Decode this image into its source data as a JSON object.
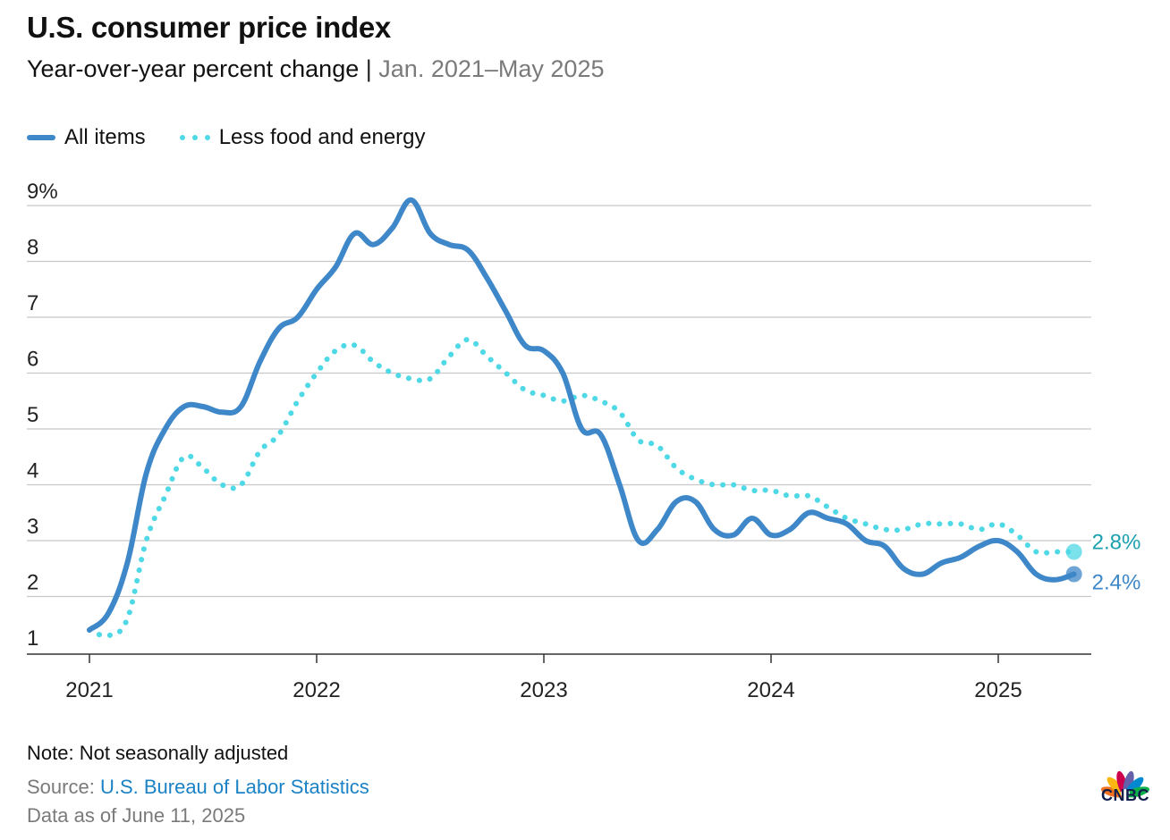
{
  "header": {
    "title": "U.S. consumer price index",
    "subtitle_main": "Year-over-year percent change",
    "subtitle_sep": "|",
    "subtitle_range": "Jan. 2021–May 2025"
  },
  "legend": {
    "all_items": "All items",
    "core": "Less food and energy"
  },
  "footer": {
    "note": "Note: Not seasonally adjusted",
    "source_prefix": "Source:",
    "source_name": "U.S. Bureau of Labor Statistics",
    "as_of": "Data as of June 11, 2025"
  },
  "brand": {
    "logo_text": "CNBC"
  },
  "colors": {
    "all_items": "#3e87c8",
    "core": "#4fd8e6",
    "all_items_label": "#3e87c8",
    "core_label": "#1aa0ae",
    "grid": "#c8c8c8",
    "axis": "#333333"
  },
  "chart_data": {
    "type": "line",
    "title": "U.S. consumer price index",
    "subtitle": "Year-over-year percent change",
    "x_start": "2021-01",
    "x_end": "2025-05",
    "x_ticks": [
      "2021",
      "2022",
      "2023",
      "2024",
      "2025"
    ],
    "ylim": [
      1,
      9
    ],
    "y_ticks": [
      "9%",
      "8",
      "7",
      "6",
      "5",
      "4",
      "3",
      "2",
      "1"
    ],
    "grid": "horizontal",
    "legend_position": "top-left",
    "x": [
      "2021-01",
      "2021-02",
      "2021-03",
      "2021-04",
      "2021-05",
      "2021-06",
      "2021-07",
      "2021-08",
      "2021-09",
      "2021-10",
      "2021-11",
      "2021-12",
      "2022-01",
      "2022-02",
      "2022-03",
      "2022-04",
      "2022-05",
      "2022-06",
      "2022-07",
      "2022-08",
      "2022-09",
      "2022-10",
      "2022-11",
      "2022-12",
      "2023-01",
      "2023-02",
      "2023-03",
      "2023-04",
      "2023-05",
      "2023-06",
      "2023-07",
      "2023-08",
      "2023-09",
      "2023-10",
      "2023-11",
      "2023-12",
      "2024-01",
      "2024-02",
      "2024-03",
      "2024-04",
      "2024-05",
      "2024-06",
      "2024-07",
      "2024-08",
      "2024-09",
      "2024-10",
      "2024-11",
      "2024-12",
      "2025-01",
      "2025-02",
      "2025-03",
      "2025-04",
      "2025-05"
    ],
    "series": [
      {
        "name": "All items",
        "style": "solid",
        "end_label": "2.4%",
        "values": [
          1.4,
          1.7,
          2.6,
          4.2,
          5.0,
          5.4,
          5.4,
          5.3,
          5.4,
          6.2,
          6.8,
          7.0,
          7.5,
          7.9,
          8.5,
          8.3,
          8.6,
          9.1,
          8.5,
          8.3,
          8.2,
          7.7,
          7.1,
          6.5,
          6.4,
          6.0,
          5.0,
          4.9,
          4.0,
          3.0,
          3.2,
          3.7,
          3.7,
          3.2,
          3.1,
          3.4,
          3.1,
          3.2,
          3.5,
          3.4,
          3.3,
          3.0,
          2.9,
          2.5,
          2.4,
          2.6,
          2.7,
          2.9,
          3.0,
          2.8,
          2.4,
          2.3,
          2.4
        ]
      },
      {
        "name": "Less food and energy",
        "style": "dotted",
        "end_label": "2.8%",
        "values": [
          1.4,
          1.3,
          1.6,
          3.0,
          3.8,
          4.5,
          4.3,
          4.0,
          4.0,
          4.6,
          4.9,
          5.5,
          6.0,
          6.4,
          6.5,
          6.2,
          6.0,
          5.9,
          5.9,
          6.3,
          6.6,
          6.3,
          6.0,
          5.7,
          5.6,
          5.5,
          5.6,
          5.5,
          5.3,
          4.8,
          4.7,
          4.3,
          4.1,
          4.0,
          4.0,
          3.9,
          3.9,
          3.8,
          3.8,
          3.6,
          3.4,
          3.3,
          3.2,
          3.2,
          3.3,
          3.3,
          3.3,
          3.2,
          3.3,
          3.1,
          2.8,
          2.8,
          2.8
        ]
      }
    ]
  }
}
